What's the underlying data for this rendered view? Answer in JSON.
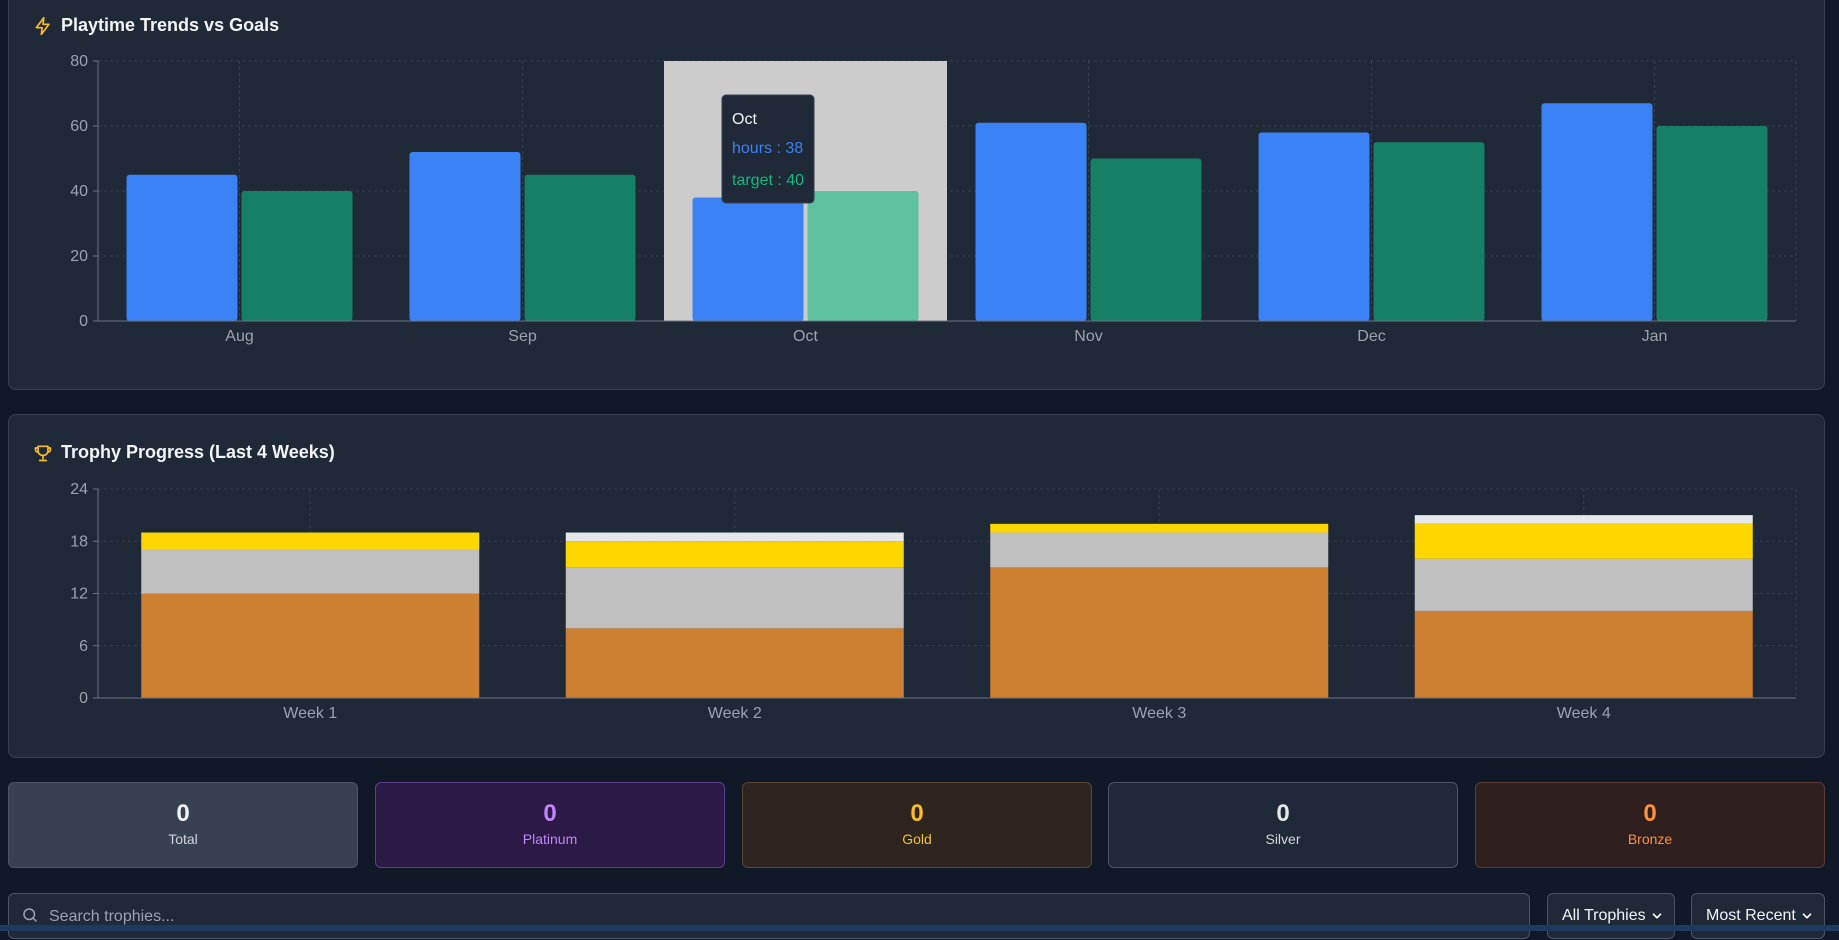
{
  "playtime_card": {
    "title": "Playtime Trends vs Goals",
    "icon": "lightning-icon"
  },
  "trophy_card": {
    "title": "Trophy Progress (Last 4 Weeks)",
    "icon": "trophy-icon"
  },
  "chart_data": [
    {
      "type": "bar",
      "title": "Playtime Trends vs Goals",
      "categories": [
        "Aug",
        "Sep",
        "Oct",
        "Nov",
        "Dec",
        "Jan"
      ],
      "series": [
        {
          "name": "hours",
          "values": [
            45,
            52,
            38,
            61,
            58,
            67
          ],
          "color": "#3b82f6"
        },
        {
          "name": "target",
          "values": [
            40,
            45,
            40,
            50,
            55,
            60
          ],
          "color": "#168067"
        }
      ],
      "ylim": [
        0,
        80
      ],
      "yticks": [
        0,
        20,
        40,
        60,
        80
      ],
      "grid": true,
      "highlight_color": "#5ec2a1",
      "tooltip": {
        "category": "Oct",
        "lines": [
          "hours : 38",
          "target : 40"
        ]
      }
    },
    {
      "type": "bar",
      "stacked": true,
      "title": "Trophy Progress (Last 4 Weeks)",
      "categories": [
        "Week 1",
        "Week 2",
        "Week 3",
        "Week 4"
      ],
      "series": [
        {
          "values": [
            12,
            8,
            15,
            10
          ],
          "color": "#cd7f32"
        },
        {
          "values": [
            5,
            7,
            4,
            6
          ],
          "color": "#c0c0c0"
        },
        {
          "values": [
            2,
            3,
            1,
            4
          ],
          "color": "#ffd700"
        },
        {
          "values": [
            0,
            1,
            0,
            1
          ],
          "color": "#e5e7eb"
        }
      ],
      "ylim": [
        0,
        24
      ],
      "yticks": [
        0,
        6,
        12,
        18,
        24
      ],
      "grid": true
    }
  ],
  "stats": [
    {
      "value": "0",
      "label": "Total",
      "bg": "#374151",
      "border": "#4b5563",
      "color": "#f3f4f6"
    },
    {
      "value": "0",
      "label": "Platinum",
      "bg": "#2a1a45",
      "border": "#5b3f8c",
      "color": "#c084fc"
    },
    {
      "value": "0",
      "label": "Gold",
      "bg": "#2e2520",
      "border": "#5a4636",
      "color": "#fbbf24"
    },
    {
      "value": "0",
      "label": "Silver",
      "bg": "#1f2937",
      "border": "#4b5563",
      "color": "#e5e7eb"
    },
    {
      "value": "0",
      "label": "Bronze",
      "bg": "#2f1f1e",
      "border": "#5a3a34",
      "color": "#fb923c"
    }
  ],
  "search": {
    "placeholder": "Search trophies...",
    "icon": "search-icon"
  },
  "filters": {
    "type_selected": "All Trophies",
    "sort_selected": "Most Recent"
  }
}
